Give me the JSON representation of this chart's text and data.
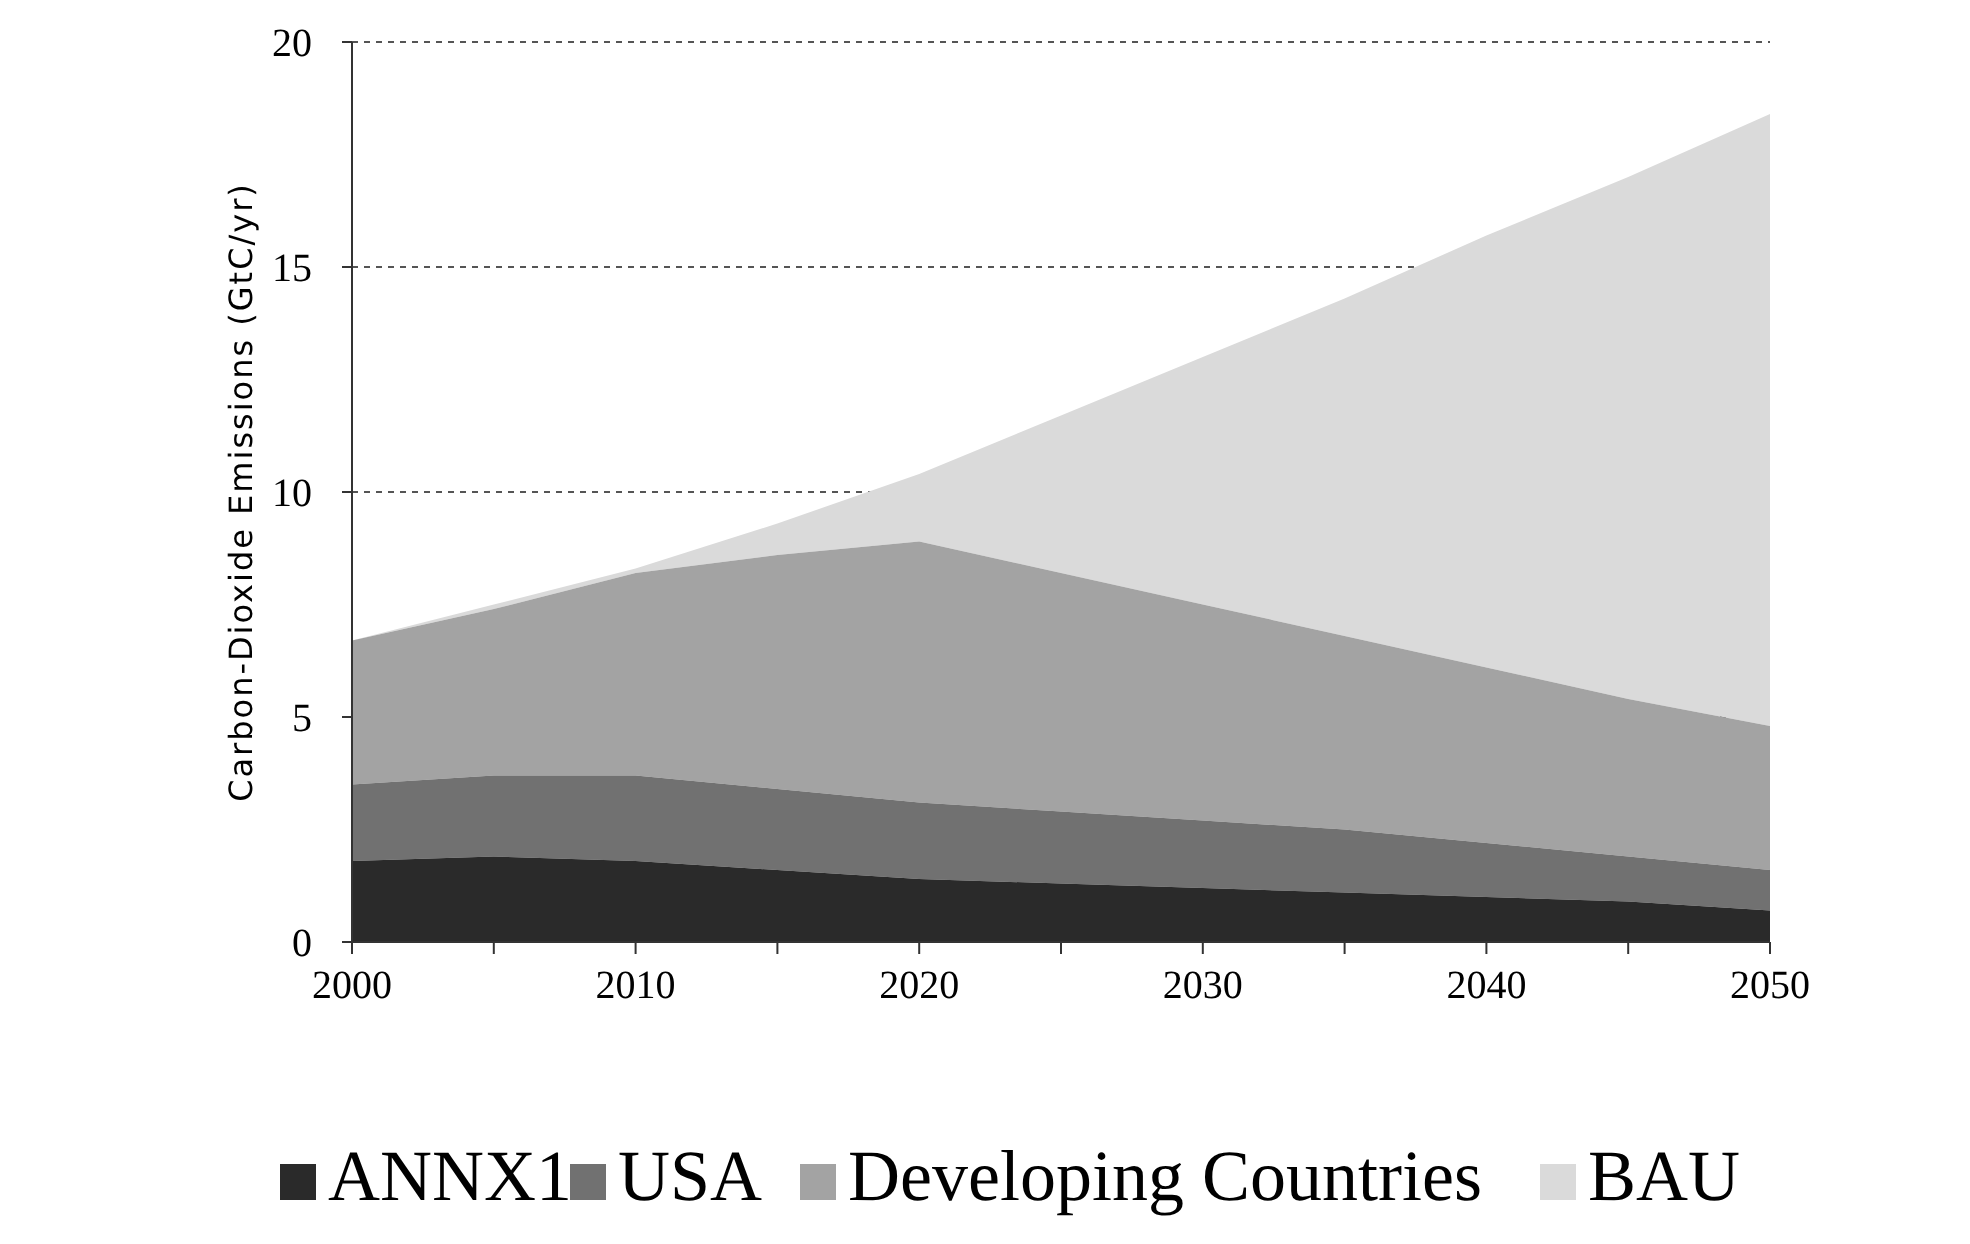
{
  "chart_data": {
    "type": "area",
    "stacked": true,
    "ylabel": "Carbon-Dioxide Emissions (GtC/yr)",
    "x": [
      2000,
      2005,
      2010,
      2015,
      2020,
      2025,
      2030,
      2035,
      2040,
      2045,
      2050
    ],
    "xlim": [
      2000,
      2050
    ],
    "xticks": [
      2000,
      {
        "value": 2005,
        "label": null
      },
      2010,
      {
        "value": 2015,
        "label": null
      },
      2020,
      {
        "value": 2025,
        "label": null
      },
      2030,
      {
        "value": 2035,
        "label": null
      },
      2040,
      {
        "value": 2045,
        "label": null
      },
      2050
    ],
    "ylim": [
      0,
      20
    ],
    "yticks": [
      0,
      5,
      10,
      15,
      20
    ],
    "grid": "y",
    "legend": "bottom",
    "series": [
      {
        "name": "ANNX1",
        "color": "#2a2a2a",
        "values": [
          1.8,
          1.9,
          1.8,
          1.6,
          1.4,
          1.3,
          1.2,
          1.1,
          1.0,
          0.9,
          0.7
        ]
      },
      {
        "name": "USA",
        "color": "#717171",
        "values": [
          1.7,
          1.8,
          1.9,
          1.8,
          1.7,
          1.6,
          1.5,
          1.4,
          1.2,
          1.0,
          0.9
        ]
      },
      {
        "name": "Developing Countries",
        "color": "#a3a3a3",
        "values": [
          3.2,
          3.7,
          4.5,
          5.2,
          5.8,
          5.3,
          4.8,
          4.3,
          3.9,
          3.5,
          3.2
        ]
      },
      {
        "name": "BAU",
        "color": "#dadada",
        "values": [
          0,
          0.1,
          0.1,
          0.7,
          1.5,
          3.5,
          5.5,
          7.5,
          9.6,
          11.6,
          13.6
        ]
      }
    ]
  }
}
